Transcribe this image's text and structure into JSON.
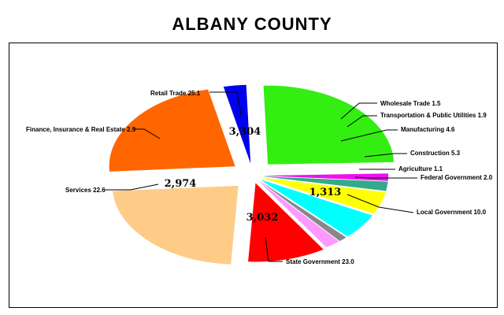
{
  "chart_data": {
    "type": "pie",
    "title": "ALBANY COUNTY",
    "slices": [
      {
        "name": "Retail Trade",
        "percent": 25.1,
        "value": 3304,
        "value_label": "3,304",
        "color": "#33ee11"
      },
      {
        "name": "Wholesale Trade",
        "percent": 1.5,
        "value": null,
        "value_label": "",
        "color": "#ee11ee"
      },
      {
        "name": "Transportation & Public Utilities",
        "percent": 1.9,
        "value": null,
        "value_label": "",
        "color": "#33aa88"
      },
      {
        "name": "Manufacturing",
        "percent": 4.6,
        "value": null,
        "value_label": "",
        "color": "#ffff00"
      },
      {
        "name": "Construction",
        "percent": 5.3,
        "value": null,
        "value_label": "",
        "color": "#00ffff"
      },
      {
        "name": "Agriculture",
        "percent": 1.1,
        "value": null,
        "value_label": "",
        "color": "#888888"
      },
      {
        "name": "Federal Government",
        "percent": 2.0,
        "value": null,
        "value_label": "",
        "color": "#ff99ff"
      },
      {
        "name": "Local Government",
        "percent": 10.0,
        "value": 1313,
        "value_label": "1,313",
        "color": "#ff0000"
      },
      {
        "name": "State Government",
        "percent": 23.0,
        "value": 3032,
        "value_label": "3,032",
        "color": "#ffcc88"
      },
      {
        "name": "Services",
        "percent": 22.6,
        "value": 2974,
        "value_label": "2,974",
        "color": "#ff6600"
      },
      {
        "name": "Finance, Insurance & Real Estate",
        "percent": 2.9,
        "value": null,
        "value_label": "",
        "color": "#0000ee"
      }
    ],
    "labels": [
      "Retail Trade 25.1",
      "Wholesale Trade 1.5",
      "Transportation & Public Utilities 1.9",
      "Manufacturing 4.6",
      "Construction 5.3",
      "Agriculture 1.1",
      "Federal Government 2.0",
      "Local Government 10.0",
      "State Government 23.0",
      "Services 22.6",
      "Finance, Insurance & Real Estate 2.9"
    ]
  }
}
